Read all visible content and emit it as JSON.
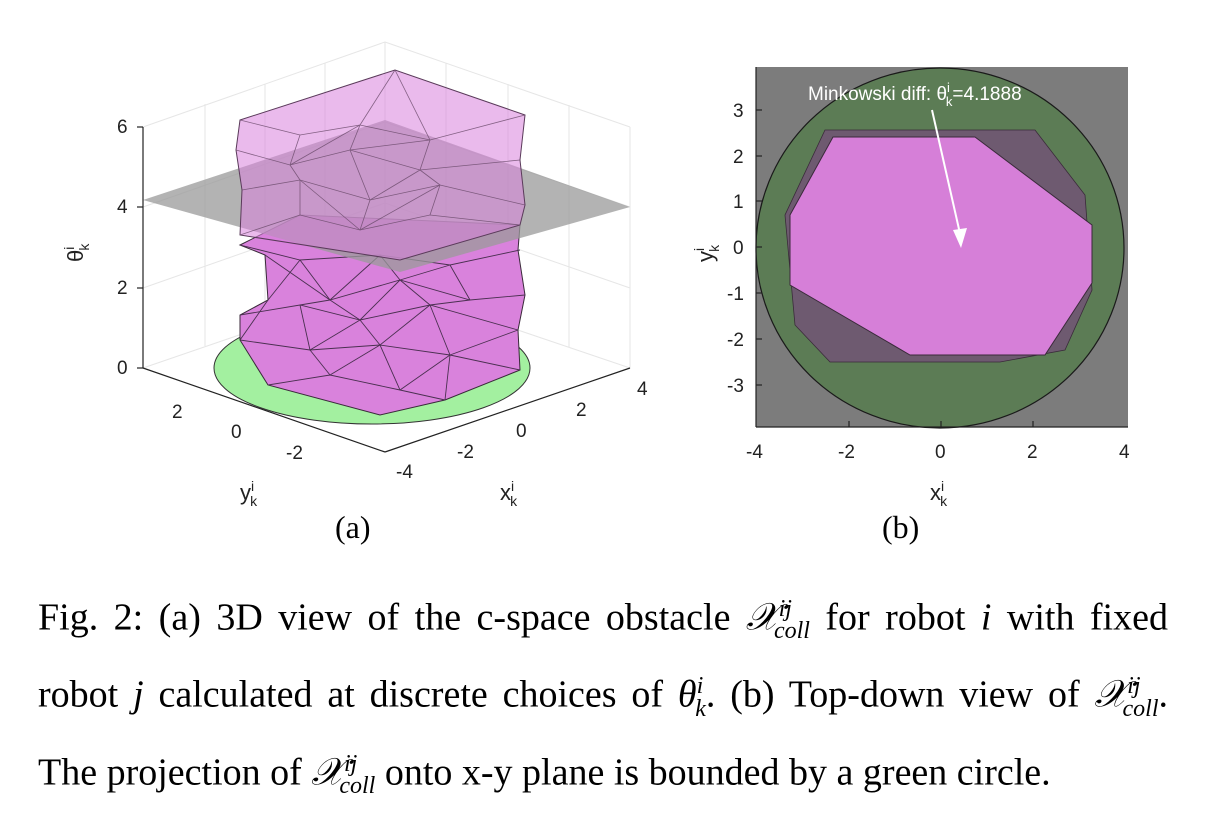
{
  "figure": {
    "panel_a": {
      "label": "(a)",
      "z_axis_label": "θ",
      "z_axis_sup": "i",
      "z_axis_sub": "k",
      "z_ticks": [
        "0",
        "2",
        "4",
        "6"
      ],
      "y_axis_label": "y",
      "y_axis_sup": "i",
      "y_axis_sub": "k",
      "y_ticks": [
        "2",
        "0",
        "-2"
      ],
      "x_axis_label": "x",
      "x_axis_sup": "i",
      "x_axis_sub": "k",
      "x_ticks": [
        "-4",
        "-2",
        "0",
        "2",
        "4"
      ],
      "colors": {
        "obstacle": "#d982dc",
        "plane": "#9a9a9a",
        "disk": "#a3f0a0"
      }
    },
    "panel_b": {
      "label": "(b)",
      "annotation_prefix": "Minkowski diff: θ",
      "annotation_sup": "i",
      "annotation_sub": "k",
      "annotation_value": "=4.1888",
      "y_axis_label": "y",
      "y_axis_sup": "i",
      "y_axis_sub": "k",
      "y_ticks": [
        "3",
        "2",
        "1",
        "0",
        "-1",
        "-2",
        "-3"
      ],
      "x_axis_label": "x",
      "x_axis_sup": "i",
      "x_axis_sub": "k",
      "x_ticks": [
        "-4",
        "-2",
        "0",
        "2",
        "4"
      ],
      "colors": {
        "background": "#7c7c7c",
        "circle": "#5c7c55",
        "polygon": "#d67fd8"
      }
    }
  },
  "caption": {
    "prefix": "Fig. 2: (a) 3D view of the c-space obstacle",
    "sym": "𝒳",
    "sup": "ij",
    "sub": "coll",
    "mid1": " for robot",
    "var_i": "i",
    "mid2": " with fixed robot ",
    "var_j": "j",
    "mid3": " calculated at discrete choices of ",
    "theta": "θ",
    "theta_sup": "i",
    "theta_sub": "k",
    "end1": ".",
    "part_b": "(b) Top-down view of ",
    "part_b_end": ". The projection of ",
    "part_b_tail": " onto x-y plane is bounded by a green circle."
  }
}
